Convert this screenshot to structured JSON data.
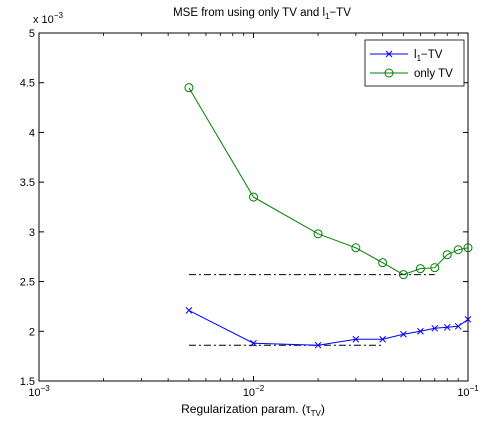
{
  "chart_data": {
    "type": "line",
    "title": "MSE from using only TV and l1−TV",
    "title_parts": {
      "before": "MSE from using only TV and l",
      "sub": "1",
      "after": "−TV"
    },
    "xlabel": "Regularization param. (τTV)",
    "xlabel_parts": {
      "before": "Regularization param. (τ",
      "sub": "TV",
      "after": ")"
    },
    "xscale": "log",
    "xlim": [
      0.001,
      0.1
    ],
    "ylim": [
      1.5,
      5
    ],
    "y_multiplier": "x 10−3",
    "y_multiplier_parts": {
      "before": "x 10",
      "sup": "−3"
    },
    "x_ticks": [
      {
        "value": 0.001,
        "base": "10",
        "exp": "−3"
      },
      {
        "value": 0.01,
        "base": "10",
        "exp": "−2"
      },
      {
        "value": 0.1,
        "base": "10",
        "exp": "−1"
      }
    ],
    "y_ticks": [
      {
        "value": 1.5,
        "label": "1.5"
      },
      {
        "value": 2,
        "label": "2"
      },
      {
        "value": 2.5,
        "label": "2.5"
      },
      {
        "value": 3,
        "label": "3"
      },
      {
        "value": 3.5,
        "label": "3.5"
      },
      {
        "value": 4,
        "label": "4"
      },
      {
        "value": 4.5,
        "label": "4.5"
      },
      {
        "value": 5,
        "label": "5"
      }
    ],
    "grid": false,
    "legend_position": "top-right",
    "series": [
      {
        "name": "l1−TV",
        "name_parts": {
          "before": "l",
          "sub": "1",
          "after": "−TV"
        },
        "color": "#0000ff",
        "marker": "x",
        "x": [
          0.005,
          0.01,
          0.02,
          0.03,
          0.04,
          0.05,
          0.06,
          0.07,
          0.08,
          0.09,
          0.1
        ],
        "y": [
          2.21,
          1.88,
          1.86,
          1.92,
          1.92,
          1.97,
          2.0,
          2.03,
          2.04,
          2.05,
          2.12
        ]
      },
      {
        "name": "only TV",
        "color": "#008000",
        "marker": "o",
        "x": [
          0.005,
          0.01,
          0.02,
          0.03,
          0.04,
          0.05,
          0.06,
          0.07,
          0.08,
          0.09,
          0.1
        ],
        "y": [
          4.45,
          3.35,
          2.98,
          2.84,
          2.69,
          2.57,
          2.63,
          2.64,
          2.77,
          2.82,
          2.84
        ]
      }
    ],
    "reference_lines": [
      {
        "y": 2.57,
        "x_from": 0.005,
        "x_to": 0.07,
        "style": "dash-dot",
        "color": "#000000"
      },
      {
        "y": 1.86,
        "x_from": 0.005,
        "x_to": 0.04,
        "style": "dash-dot",
        "color": "#000000"
      }
    ]
  }
}
